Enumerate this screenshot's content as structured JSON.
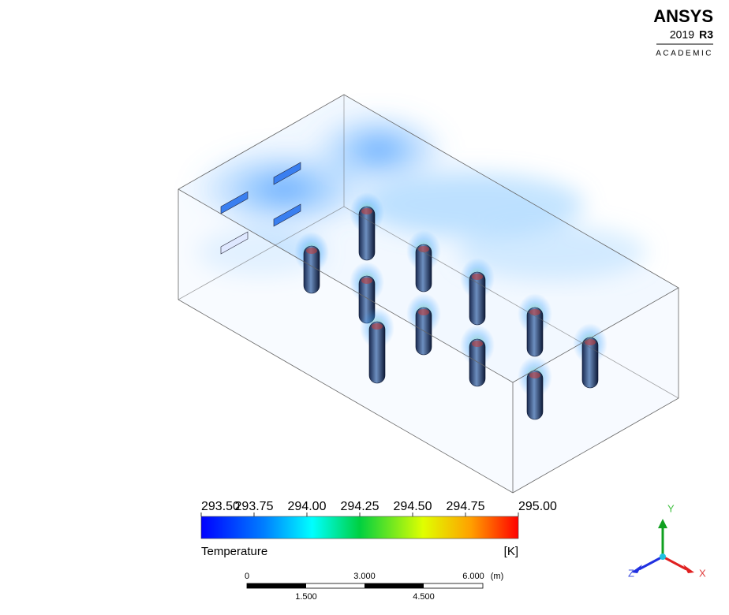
{
  "logo": {
    "brand": "ANSYS",
    "year": "2019",
    "release": "R3",
    "edition": "ACADEMIC"
  },
  "legend": {
    "ticks": [
      "293.50",
      "293.75",
      "294.00",
      "294.25",
      "294.50",
      "294.75",
      "295.00"
    ],
    "title": "Temperature",
    "unit": "[K]"
  },
  "scale_bar": {
    "top_labels": [
      "0",
      "3.000",
      "6.000"
    ],
    "unit": "(m)",
    "bottom_labels": [
      "1.500",
      "4.500"
    ]
  },
  "triad": {
    "y": "Y",
    "z": "Z",
    "x": "X"
  }
}
